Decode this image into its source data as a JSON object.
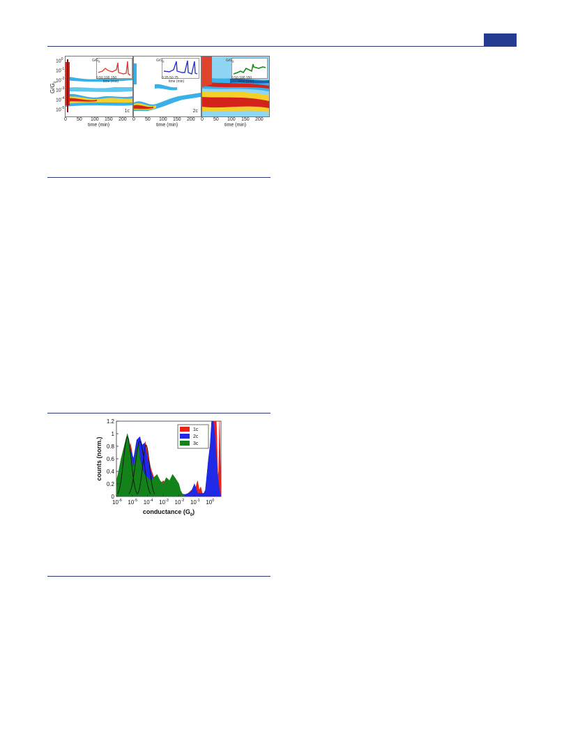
{
  "figure_top": {
    "y_axis_label": "G/G",
    "y_axis_sub": "0",
    "y_ticks": [
      "10",
      "10",
      "10",
      "10",
      "10",
      "10"
    ],
    "y_tick_exps": [
      "0",
      "-1",
      "-2",
      "-3",
      "-4",
      "-5"
    ],
    "panels": [
      {
        "label": "1c",
        "x_ticks": [
          "0",
          "50",
          "100",
          "150",
          "200"
        ],
        "x_label": "time (min)",
        "inset": {
          "x_ticks": [
            "0",
            "50",
            "100",
            "150"
          ],
          "x_label": "time (min)",
          "y_label": "G/G",
          "y_sub": "0",
          "color": "#e23a2a"
        }
      },
      {
        "label": "2c",
        "x_ticks": [
          "0",
          "50",
          "100",
          "150",
          "200"
        ],
        "x_label": "time (min)",
        "inset": {
          "x_ticks": [
            "0",
            "25",
            "50",
            "75"
          ],
          "x_label": "time (min)",
          "y_label": "G/G",
          "y_sub": "0",
          "color": "#2b32d8"
        }
      },
      {
        "label": "",
        "x_ticks": [
          "0",
          "50",
          "100",
          "150",
          "200"
        ],
        "x_label": "time (min)",
        "inset": {
          "x_ticks": [
            "0",
            "50",
            "100",
            "150"
          ],
          "x_label": "time (min)",
          "y_label": "G/G",
          "y_sub": "0",
          "color": "#1a8a1a"
        }
      }
    ]
  },
  "chart_data": {
    "type": "area",
    "xscale": "log",
    "x_ticks": [
      "10",
      "10",
      "10",
      "10",
      "10",
      "10",
      "10"
    ],
    "x_tick_exps": [
      "-6",
      "-5",
      "-4",
      "-3",
      "-2",
      "-1",
      "0"
    ],
    "y_ticks": [
      "0",
      "0.2",
      "0.4",
      "0.6",
      "0.8",
      "1",
      "1.2"
    ],
    "xlabel": "conductance (G",
    "xlabel_sub": "0",
    "xlabel_end": ")",
    "ylabel": "counts (norm.)",
    "ylim": [
      0,
      1.2
    ],
    "xlim_log10": [
      -6,
      0.7
    ],
    "legend": {
      "placement": "top-right"
    },
    "series": [
      {
        "name": "1c",
        "color": "#e8231c",
        "x_log10": [
          -6,
          -5.6,
          -5.3,
          -5.1,
          -4.9,
          -4.7,
          -4.5,
          -4.3,
          -4.15,
          -4.0,
          -3.8,
          -3.6,
          -3.4,
          -3.2,
          -3.0,
          -2.8,
          -2.6,
          -2.4,
          -2.2,
          -2.0,
          -1.8,
          -1.6,
          -1.4,
          -1.2,
          -1.0,
          -0.8,
          -0.7,
          -0.6,
          -0.5,
          -0.4,
          -0.3,
          -0.2,
          -0.1,
          0.0,
          0.1,
          0.2,
          0.3,
          0.4,
          0.45,
          0.5,
          0.55,
          0.6,
          0.7
        ],
        "values": [
          0.05,
          0.2,
          0.6,
          0.85,
          0.55,
          0.7,
          0.9,
          0.75,
          0.87,
          0.7,
          0.45,
          0.3,
          0.25,
          0.2,
          0.25,
          0.2,
          0.15,
          0.1,
          0.08,
          0.05,
          0.04,
          0.03,
          0.05,
          0.1,
          0.08,
          0.25,
          0.1,
          0.15,
          0.05,
          0.05,
          0.1,
          0.3,
          0.6,
          0.8,
          1.0,
          1.2,
          1.2,
          1.2,
          0.8,
          0.3,
          0.4,
          1.2,
          0
        ]
      },
      {
        "name": "2c",
        "color": "#1f29e6",
        "x_log10": [
          -6,
          -5.6,
          -5.3,
          -5.1,
          -4.9,
          -4.7,
          -4.5,
          -4.35,
          -4.2,
          -4.0,
          -3.8,
          -3.6,
          -3.4,
          -3.2,
          -3.0,
          -2.8,
          -2.6,
          -2.4,
          -2.2,
          -2.0,
          -1.8,
          -1.6,
          -1.4,
          -1.2,
          -1.0,
          -0.8,
          -0.6,
          -0.5,
          -0.4,
          -0.3,
          -0.2,
          -0.1,
          0.0,
          0.1,
          0.2,
          0.3,
          0.4,
          0.5,
          0.6,
          0.7
        ],
        "values": [
          0.03,
          0.15,
          0.5,
          0.75,
          0.6,
          0.9,
          0.95,
          0.82,
          0.85,
          0.6,
          0.4,
          0.25,
          0.2,
          0.15,
          0.18,
          0.15,
          0.12,
          0.08,
          0.06,
          0.05,
          0.04,
          0.03,
          0.05,
          0.08,
          0.2,
          0.05,
          0.05,
          0.05,
          0.05,
          0.1,
          0.35,
          0.6,
          0.8,
          1.2,
          1.2,
          1.0,
          0.6,
          0.3,
          0.1,
          0
        ]
      },
      {
        "name": "3c",
        "color": "#13821a",
        "x_log10": [
          -6,
          -5.9,
          -5.7,
          -5.5,
          -5.3,
          -5.2,
          -5.1,
          -5.0,
          -4.9,
          -4.8,
          -4.7,
          -4.6,
          -4.5,
          -4.4,
          -4.3,
          -4.2,
          -4.0,
          -3.8,
          -3.6,
          -3.4,
          -3.2,
          -3.0,
          -2.8,
          -2.6,
          -2.4,
          -2.2,
          -2.0,
          -1.9,
          -1.8,
          -1.7,
          -1.6
        ],
        "values": [
          0.25,
          0.35,
          0.6,
          0.8,
          1.0,
          0.9,
          0.7,
          0.55,
          0.45,
          0.6,
          0.75,
          0.85,
          0.6,
          0.5,
          0.4,
          0.35,
          0.3,
          0.25,
          0.3,
          0.35,
          0.25,
          0.2,
          0.3,
          0.25,
          0.35,
          0.28,
          0.2,
          0.1,
          0.05,
          0.02,
          0
        ]
      }
    ]
  }
}
